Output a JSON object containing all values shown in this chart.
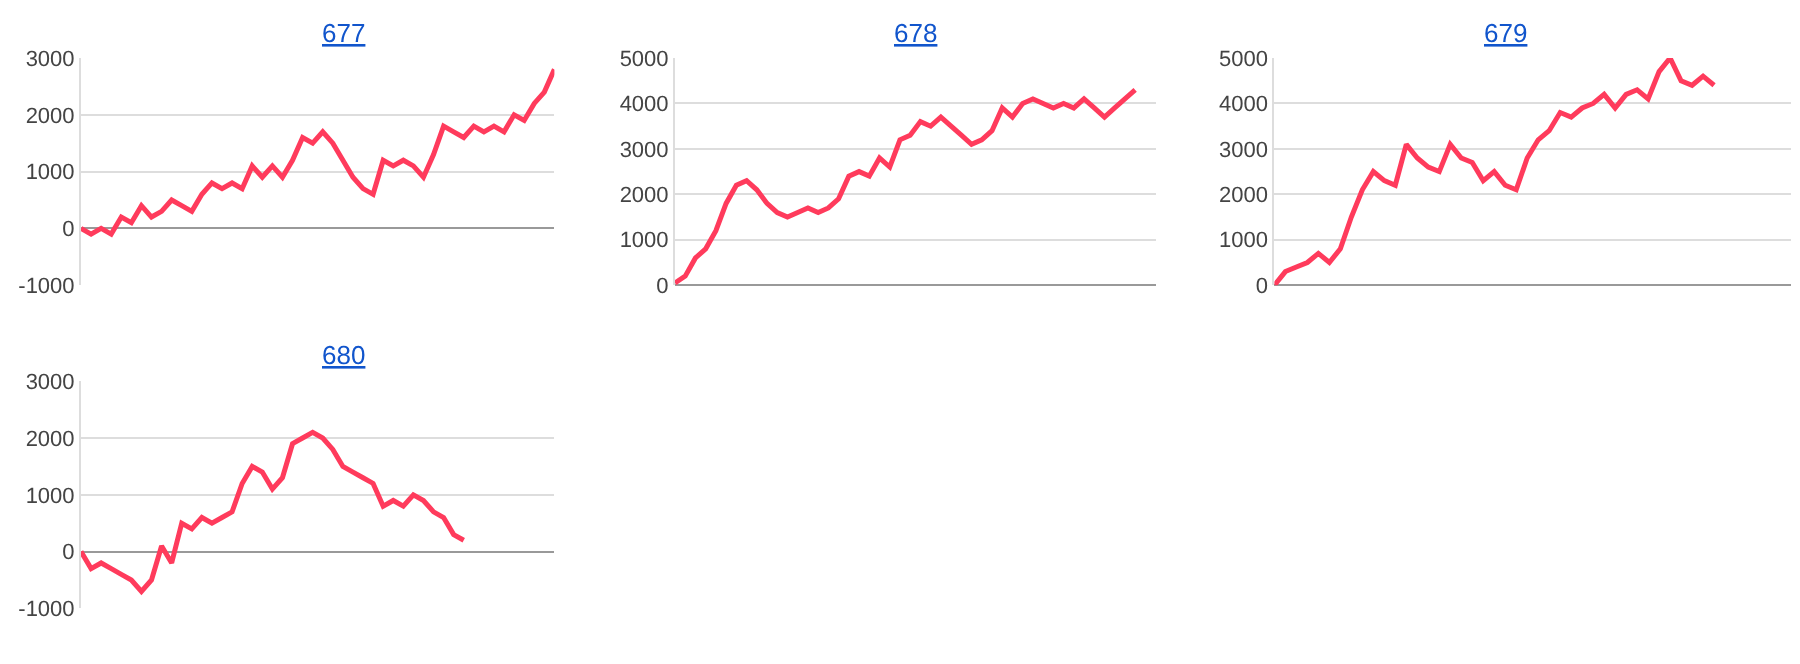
{
  "chart_data": [
    {
      "type": "line",
      "title": "677",
      "categories": [
        null,
        null,
        null,
        null,
        null,
        null,
        null,
        null,
        null,
        null,
        null,
        null,
        null,
        null,
        null,
        null,
        null,
        null,
        null,
        null,
        null,
        null,
        null,
        null,
        null,
        null,
        null,
        null,
        null,
        null,
        null,
        null,
        null,
        null,
        null,
        null,
        null,
        null,
        null,
        null,
        null,
        null,
        null,
        null,
        null,
        null,
        null,
        null
      ],
      "color": "#ff3b5c",
      "ylim": [
        -1000,
        3000
      ],
      "yticks": [
        -1000,
        0,
        1000,
        2000,
        3000
      ],
      "grid": "y",
      "tick_labels": "y",
      "marker": "none",
      "values": [
        0,
        -100,
        0,
        -100,
        200,
        100,
        400,
        200,
        300,
        500,
        400,
        300,
        600,
        800,
        700,
        800,
        700,
        1100,
        900,
        1100,
        900,
        1200,
        1600,
        1500,
        1700,
        1500,
        1200,
        900,
        700,
        600,
        1200,
        1100,
        1200,
        1100,
        900,
        1300,
        1800,
        1700,
        1600,
        1800,
        1700,
        1800,
        1700,
        2000,
        1900,
        2200,
        2400,
        2800
      ]
    },
    {
      "type": "line",
      "title": "678",
      "categories": [
        null,
        null,
        null,
        null,
        null,
        null,
        null,
        null,
        null,
        null,
        null,
        null,
        null,
        null,
        null,
        null,
        null,
        null,
        null,
        null,
        null,
        null,
        null,
        null,
        null,
        null,
        null,
        null,
        null,
        null,
        null,
        null,
        null,
        null,
        null,
        null,
        null,
        null,
        null,
        null,
        null,
        null,
        null,
        null,
        null,
        null,
        null,
        null
      ],
      "color": "#ff3b5c",
      "ylim": [
        0,
        5000
      ],
      "yticks": [
        0,
        1000,
        2000,
        3000,
        4000,
        5000
      ],
      "grid": "y",
      "tick_labels": "y",
      "marker": "none",
      "values": [
        50,
        200,
        600,
        800,
        1200,
        1800,
        2200,
        2300,
        2100,
        1800,
        1600,
        1500,
        1600,
        1700,
        1600,
        1700,
        1900,
        2400,
        2500,
        2400,
        2800,
        2600,
        3200,
        3300,
        3600,
        3500,
        3700,
        3500,
        3300,
        3100,
        3200,
        3400,
        3900,
        3700,
        4000,
        4100,
        4000,
        3900,
        4000,
        3900,
        4100,
        3900,
        3700,
        3900,
        4100,
        4300,
        null,
        null
      ]
    },
    {
      "type": "line",
      "title": "679",
      "categories": [
        null,
        null,
        null,
        null,
        null,
        null,
        null,
        null,
        null,
        null,
        null,
        null,
        null,
        null,
        null,
        null,
        null,
        null,
        null,
        null,
        null,
        null,
        null,
        null,
        null,
        null,
        null,
        null,
        null,
        null,
        null,
        null,
        null,
        null,
        null,
        null,
        null,
        null,
        null,
        null,
        null,
        null,
        null,
        null,
        null,
        null,
        null,
        null
      ],
      "color": "#ff3b5c",
      "ylim": [
        0,
        5000
      ],
      "yticks": [
        0,
        1000,
        2000,
        3000,
        4000,
        5000
      ],
      "grid": "y",
      "tick_labels": "y",
      "marker": "none",
      "values": [
        0,
        300,
        400,
        500,
        700,
        500,
        800,
        1500,
        2100,
        2500,
        2300,
        2200,
        3100,
        2800,
        2600,
        2500,
        3100,
        2800,
        2700,
        2300,
        2500,
        2200,
        2100,
        2800,
        3200,
        3400,
        3800,
        3700,
        3900,
        4000,
        4200,
        3900,
        4200,
        4300,
        4100,
        4700,
        5000,
        4500,
        4400,
        4600,
        4400,
        null,
        null,
        null,
        null,
        null,
        null,
        null
      ]
    },
    {
      "type": "line",
      "title": "680",
      "categories": [
        null,
        null,
        null,
        null,
        null,
        null,
        null,
        null,
        null,
        null,
        null,
        null,
        null,
        null,
        null,
        null,
        null,
        null,
        null,
        null,
        null,
        null,
        null,
        null,
        null,
        null,
        null,
        null,
        null,
        null,
        null,
        null,
        null,
        null,
        null,
        null,
        null,
        null,
        null,
        null,
        null,
        null,
        null,
        null,
        null,
        null,
        null,
        null
      ],
      "color": "#ff3b5c",
      "ylim": [
        -1000,
        3000
      ],
      "yticks": [
        -1000,
        0,
        1000,
        2000,
        3000
      ],
      "grid": "y",
      "tick_labels": "y",
      "marker": "none",
      "values": [
        0,
        -300,
        -200,
        -300,
        -400,
        -500,
        -700,
        -500,
        100,
        -200,
        500,
        400,
        600,
        500,
        600,
        700,
        1200,
        1500,
        1400,
        1100,
        1300,
        1900,
        2000,
        2100,
        2000,
        1800,
        1500,
        1400,
        1300,
        1200,
        800,
        900,
        800,
        1000,
        900,
        700,
        600,
        300,
        200,
        null,
        null,
        null,
        null,
        null,
        null,
        null,
        null,
        null
      ]
    }
  ]
}
